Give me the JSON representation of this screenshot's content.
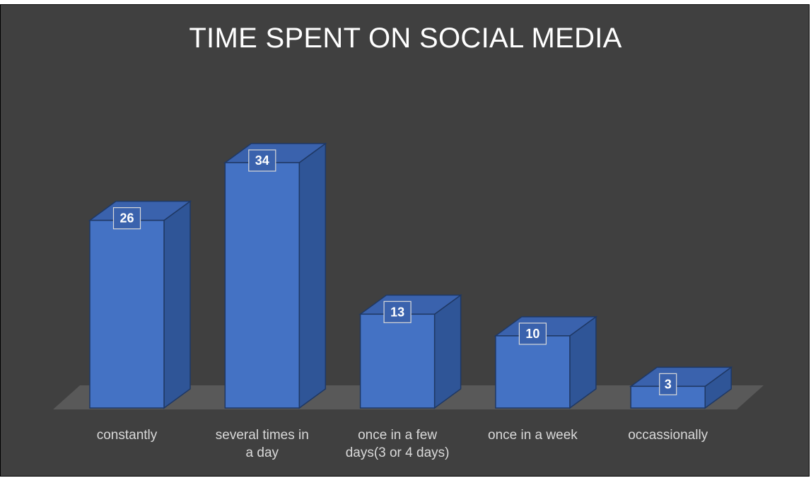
{
  "chart_data": {
    "type": "bar",
    "title": "TIME SPENT ON SOCIAL MEDIA",
    "categories": [
      [
        "constantly"
      ],
      [
        "several times in",
        "a day"
      ],
      [
        "once in a few",
        "days(3 or 4 days)"
      ],
      [
        "once in a week"
      ],
      [
        "occassionally"
      ]
    ],
    "values": [
      26,
      34,
      13,
      10,
      3
    ],
    "ylim": [
      0,
      34
    ],
    "grid": false,
    "legend": "none",
    "style": "3d-column",
    "colors": {
      "background": "#404040",
      "bar_front": "#4472c4",
      "bar_side": "#2f5597",
      "bar_top": "#3a62ad",
      "bar_edge": "#1f3864",
      "floor": "#595959",
      "label_text": "#d9d9d9"
    }
  }
}
